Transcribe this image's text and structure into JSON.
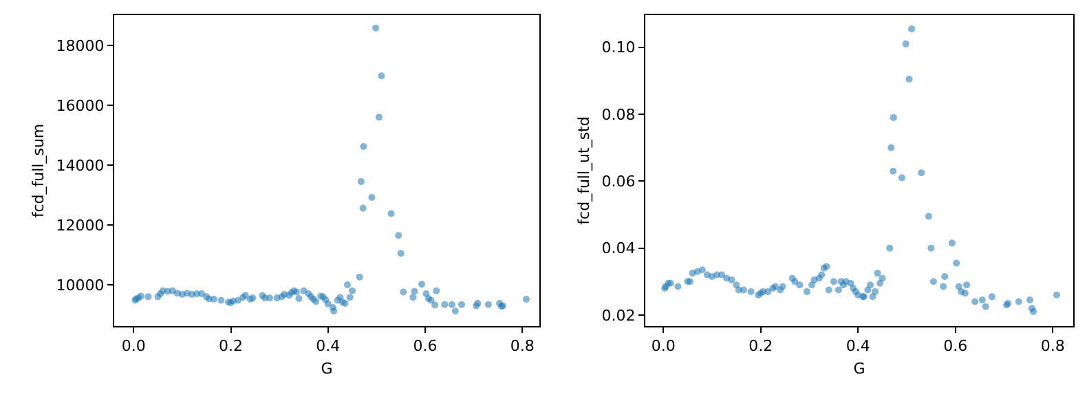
{
  "chart_data": [
    {
      "type": "scatter",
      "xlabel": "G",
      "ylabel": "fcd_full_sum",
      "marker": "circle",
      "grid": false,
      "xlim": [
        -0.04,
        0.835
      ],
      "xticks": [
        {
          "value": 0,
          "label": "0.0"
        },
        0.2,
        0.4,
        0.6,
        0.8
      ],
      "ylim": [
        8620,
        19010
      ],
      "yticks": [
        10000,
        12000,
        14000,
        16000,
        18000
      ],
      "series": [
        {
          "color": "#1f77b4",
          "x": [
            0.003,
            0.005,
            0.01,
            0.015,
            0.03,
            0.05,
            0.055,
            0.06,
            0.07,
            0.08,
            0.09,
            0.1,
            0.11,
            0.12,
            0.13,
            0.14,
            0.15,
            0.155,
            0.165,
            0.18,
            0.195,
            0.2,
            0.205,
            0.215,
            0.225,
            0.23,
            0.24,
            0.245,
            0.265,
            0.27,
            0.28,
            0.295,
            0.305,
            0.31,
            0.32,
            0.325,
            0.33,
            0.335,
            0.34,
            0.35,
            0.36,
            0.365,
            0.37,
            0.375,
            0.385,
            0.39,
            0.395,
            0.4,
            0.41,
            0.412,
            0.42,
            0.425,
            0.43,
            0.435,
            0.44,
            0.445,
            0.45,
            0.465,
            0.468,
            0.472,
            0.473,
            0.49,
            0.498,
            0.505,
            0.51,
            0.53,
            0.545,
            0.55,
            0.555,
            0.575,
            0.578,
            0.593,
            0.602,
            0.607,
            0.612,
            0.62,
            0.623,
            0.64,
            0.655,
            0.662,
            0.675,
            0.705,
            0.708,
            0.73,
            0.753,
            0.757,
            0.76,
            0.808
          ],
          "values": [
            9480,
            9530,
            9560,
            9620,
            9600,
            9600,
            9700,
            9800,
            9780,
            9800,
            9720,
            9680,
            9720,
            9680,
            9700,
            9700,
            9600,
            9530,
            9520,
            9480,
            9420,
            9400,
            9460,
            9480,
            9580,
            9650,
            9520,
            9560,
            9640,
            9560,
            9560,
            9560,
            9600,
            9680,
            9650,
            9740,
            9800,
            9760,
            9540,
            9800,
            9700,
            9600,
            9520,
            9440,
            9620,
            9600,
            9500,
            9360,
            9240,
            9120,
            9480,
            9580,
            9420,
            9380,
            10000,
            9580,
            9800,
            10260,
            13450,
            12560,
            14620,
            12920,
            18580,
            15600,
            16980,
            12380,
            11650,
            11050,
            9760,
            9580,
            9780,
            10020,
            9700,
            9540,
            9480,
            9320,
            9800,
            9340,
            9340,
            9120,
            9340,
            9300,
            9380,
            9340,
            9380,
            9280,
            9300,
            9520
          ]
        }
      ]
    },
    {
      "type": "scatter",
      "xlabel": "G",
      "ylabel": "fcd_full_ut_std",
      "marker": "circle",
      "grid": false,
      "xlim": [
        -0.037,
        0.842
      ],
      "xticks": [
        {
          "value": 0,
          "label": "0.0"
        },
        0.2,
        0.4,
        0.6,
        0.8
      ],
      "ylim": [
        0.0167,
        0.1096
      ],
      "yticks": [
        {
          "value": 0.02,
          "label": "0.02"
        },
        {
          "value": 0.04,
          "label": "0.04"
        },
        {
          "value": 0.06,
          "label": "0.06"
        },
        {
          "value": 0.08,
          "label": "0.08"
        },
        {
          "value": 0.1,
          "label": "0.10"
        }
      ],
      "series": [
        {
          "color": "#1f77b4",
          "x": [
            0.003,
            0.005,
            0.01,
            0.015,
            0.03,
            0.05,
            0.055,
            0.06,
            0.07,
            0.08,
            0.09,
            0.1,
            0.11,
            0.12,
            0.13,
            0.14,
            0.15,
            0.155,
            0.165,
            0.18,
            0.195,
            0.2,
            0.205,
            0.215,
            0.225,
            0.23,
            0.24,
            0.245,
            0.265,
            0.27,
            0.28,
            0.295,
            0.305,
            0.31,
            0.32,
            0.325,
            0.33,
            0.335,
            0.34,
            0.35,
            0.36,
            0.365,
            0.37,
            0.375,
            0.385,
            0.39,
            0.395,
            0.4,
            0.41,
            0.412,
            0.42,
            0.425,
            0.43,
            0.435,
            0.44,
            0.445,
            0.45,
            0.465,
            0.468,
            0.472,
            0.473,
            0.49,
            0.498,
            0.505,
            0.51,
            0.53,
            0.545,
            0.55,
            0.555,
            0.575,
            0.578,
            0.593,
            0.602,
            0.607,
            0.612,
            0.62,
            0.623,
            0.64,
            0.655,
            0.662,
            0.675,
            0.705,
            0.708,
            0.73,
            0.753,
            0.757,
            0.76,
            0.808
          ],
          "values": [
            0.028,
            0.0285,
            0.0295,
            0.0295,
            0.0285,
            0.03,
            0.03,
            0.0325,
            0.033,
            0.0335,
            0.032,
            0.0315,
            0.032,
            0.032,
            0.031,
            0.0305,
            0.029,
            0.0275,
            0.0275,
            0.027,
            0.026,
            0.0265,
            0.027,
            0.027,
            0.028,
            0.0285,
            0.0275,
            0.0285,
            0.031,
            0.03,
            0.029,
            0.027,
            0.029,
            0.0305,
            0.031,
            0.032,
            0.034,
            0.0345,
            0.0275,
            0.03,
            0.0275,
            0.03,
            0.029,
            0.03,
            0.0295,
            0.028,
            0.027,
            0.026,
            0.0255,
            0.0255,
            0.0275,
            0.029,
            0.0255,
            0.027,
            0.0325,
            0.0295,
            0.031,
            0.04,
            0.07,
            0.063,
            0.079,
            0.061,
            0.101,
            0.0905,
            0.1055,
            0.0625,
            0.0495,
            0.04,
            0.03,
            0.0285,
            0.0315,
            0.0415,
            0.0355,
            0.0285,
            0.027,
            0.0265,
            0.029,
            0.024,
            0.0245,
            0.0225,
            0.0255,
            0.023,
            0.0235,
            0.024,
            0.0245,
            0.022,
            0.021,
            0.026
          ]
        }
      ]
    }
  ]
}
